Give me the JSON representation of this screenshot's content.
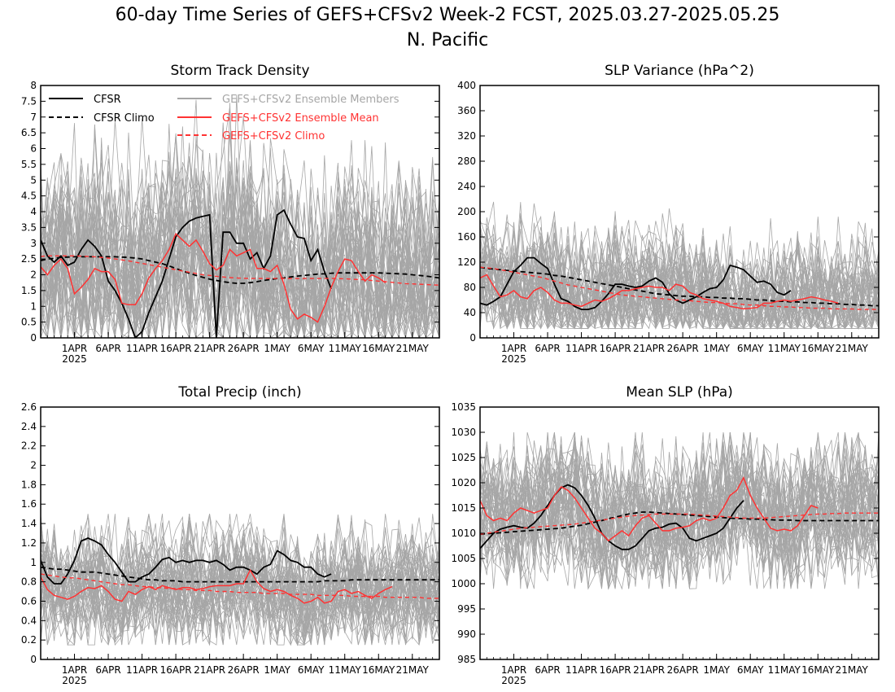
{
  "page": {
    "title_line1": "60-day Time Series of GEFS+CFSv2 Week-2 FCST, 2025.03.27-2025.05.25",
    "title_line2": "N. Pacific"
  },
  "legend": {
    "cfsr": "CFSR",
    "cfsr_climo": "CFSR Climo",
    "members": "GEFS+CFSv2 Ensemble Members",
    "mean": "GEFS+CFSv2 Ensemble Mean",
    "climo": "GEFS+CFSv2 Climo"
  },
  "colors": {
    "cfsr": "#000000",
    "members": "#a6a6a6",
    "mean": "#ff3333",
    "climo": "#ff3333"
  },
  "x_axis": {
    "start": "2025-03-27",
    "end": "2025-05-25",
    "tick_labels": [
      "1APR",
      "6APR",
      "11APR",
      "16APR",
      "21APR",
      "26APR",
      "1MAY",
      "6MAY",
      "11MAY",
      "16MAY",
      "21MAY"
    ],
    "year_label": "2025"
  },
  "chart_data": [
    {
      "type": "line",
      "title": "Storm Track Density",
      "ylim": [
        0,
        8
      ],
      "yticks": [
        "0",
        "0.5",
        "1",
        "1.5",
        "2",
        "2.5",
        "3",
        "3.5",
        "4",
        "4.5",
        "5",
        "5.5",
        "6",
        "6.5",
        "7",
        "7.5",
        "8"
      ],
      "members_range": [
        0,
        7.7
      ],
      "legend_position": "top-left",
      "series": [
        {
          "name": "CFSR",
          "values": [
            3.1,
            2.6,
            2.4,
            2.6,
            2.3,
            2.4,
            2.8,
            3.1,
            2.9,
            2.6,
            1.8,
            1.5,
            1.1,
            0.6,
            0.0,
            0.2,
            0.8,
            1.3,
            1.8,
            2.5,
            3.2,
            3.5,
            3.7,
            3.8,
            3.85,
            3.9,
            0.0,
            3.35,
            3.35,
            3.0,
            3.0,
            2.5,
            2.7,
            2.2,
            2.6,
            3.9,
            4.05,
            3.6,
            3.2,
            3.15,
            2.45,
            2.8,
            2.1,
            1.55
          ]
        },
        {
          "name": "CFSR Climo",
          "values": [
            2.45,
            2.5,
            2.52,
            2.55,
            2.56,
            2.57,
            2.57,
            2.57,
            2.57,
            2.57,
            2.57,
            2.57,
            2.56,
            2.55,
            2.53,
            2.5,
            2.45,
            2.4,
            2.35,
            2.28,
            2.2,
            2.12,
            2.05,
            1.98,
            1.92,
            1.86,
            1.82,
            1.78,
            1.75,
            1.73,
            1.73,
            1.75,
            1.78,
            1.82,
            1.85,
            1.88,
            1.9,
            1.93,
            1.96,
            1.98,
            2.0,
            2.02,
            2.03,
            2.05,
            2.06,
            2.06,
            2.06,
            2.06,
            2.06,
            2.06,
            2.06,
            2.05,
            2.04,
            2.03,
            2.02,
            2.0,
            1.98,
            1.96,
            1.93,
            1.9
          ]
        },
        {
          "name": "GEFS+CFSv2 Ensemble Mean",
          "values": [
            2.25,
            2.0,
            2.3,
            2.5,
            2.2,
            1.4,
            1.6,
            1.85,
            2.2,
            2.1,
            2.1,
            1.85,
            1.1,
            1.05,
            1.05,
            1.4,
            1.9,
            2.2,
            2.45,
            2.8,
            3.3,
            3.1,
            2.9,
            3.1,
            2.75,
            2.35,
            2.15,
            2.3,
            2.8,
            2.6,
            2.7,
            2.8,
            2.2,
            2.2,
            2.1,
            2.3,
            1.7,
            0.9,
            0.6,
            0.75,
            0.65,
            0.5,
            1.0,
            1.6,
            2.1,
            2.5,
            2.45,
            2.1,
            1.8,
            2.0,
            1.9,
            1.75
          ]
        },
        {
          "name": "GEFS+CFSv2 Climo",
          "values": [
            2.58,
            2.6,
            2.6,
            2.6,
            2.6,
            2.6,
            2.59,
            2.58,
            2.57,
            2.55,
            2.53,
            2.5,
            2.47,
            2.44,
            2.4,
            2.36,
            2.32,
            2.28,
            2.24,
            2.2,
            2.16,
            2.12,
            2.08,
            2.04,
            2.0,
            1.98,
            1.95,
            1.93,
            1.91,
            1.9,
            1.89,
            1.88,
            1.88,
            1.88,
            1.88,
            1.88,
            1.88,
            1.88,
            1.88,
            1.88,
            1.88,
            1.88,
            1.88,
            1.88,
            1.88,
            1.87,
            1.86,
            1.85,
            1.84,
            1.82,
            1.8,
            1.78,
            1.76,
            1.74,
            1.72,
            1.71,
            1.7,
            1.69,
            1.68,
            1.67
          ]
        }
      ]
    },
    {
      "type": "line",
      "title": "SLP Variance (hPa^2)",
      "ylim": [
        0,
        400
      ],
      "yticks": [
        "0",
        "40",
        "80",
        "120",
        "160",
        "200",
        "240",
        "280",
        "320",
        "360",
        "400"
      ],
      "members_range": [
        15,
        235
      ],
      "series": [
        {
          "name": "CFSR",
          "values": [
            55,
            52,
            58,
            65,
            85,
            105,
            115,
            127,
            127,
            118,
            110,
            85,
            62,
            58,
            50,
            45,
            45,
            48,
            58,
            70,
            85,
            85,
            82,
            80,
            82,
            90,
            95,
            88,
            70,
            60,
            55,
            60,
            65,
            72,
            78,
            80,
            92,
            115,
            112,
            108,
            98,
            88,
            90,
            85,
            72,
            68,
            75
          ]
        },
        {
          "name": "CFSR Climo",
          "values": [
            112,
            110,
            109,
            108,
            107,
            106,
            105,
            104,
            103,
            102,
            101,
            99,
            98,
            96,
            94,
            92,
            90,
            88,
            86,
            84,
            82,
            80,
            78,
            76,
            74,
            72,
            70,
            69,
            68,
            67,
            66,
            66,
            65,
            65,
            64,
            64,
            63,
            63,
            62,
            62,
            61,
            60,
            60,
            59,
            58,
            58,
            57,
            57,
            56,
            56,
            55,
            55,
            54,
            54,
            53,
            53,
            52,
            52,
            51,
            51
          ]
        },
        {
          "name": "GEFS+CFSv2 Ensemble Mean",
          "values": [
            95,
            100,
            82,
            65,
            68,
            75,
            65,
            62,
            75,
            80,
            72,
            60,
            55,
            55,
            52,
            50,
            55,
            60,
            58,
            62,
            68,
            75,
            75,
            78,
            80,
            82,
            80,
            80,
            75,
            85,
            82,
            72,
            68,
            62,
            60,
            58,
            55,
            50,
            48,
            46,
            47,
            48,
            55,
            55,
            58,
            60,
            58,
            60,
            62,
            65,
            63,
            60,
            58,
            55
          ]
        },
        {
          "name": "GEFS+CFSv2 Climo",
          "values": [
            112,
            111,
            110,
            108,
            106,
            104,
            102,
            100,
            98,
            96,
            93,
            90,
            87,
            84,
            82,
            80,
            78,
            76,
            74,
            72,
            70,
            68,
            67,
            66,
            65,
            64,
            63,
            62,
            61,
            60,
            60,
            59,
            58,
            57,
            56,
            56,
            55,
            54,
            54,
            53,
            52,
            52,
            51,
            50,
            50,
            49,
            49,
            48,
            48,
            47,
            47,
            47,
            46,
            46,
            46,
            46,
            45,
            45,
            45,
            45
          ]
        }
      ]
    },
    {
      "type": "line",
      "title": "Total Precip (inch)",
      "ylim": [
        0,
        2.6
      ],
      "yticks": [
        "0",
        "0.2",
        "0.4",
        "0.6",
        "0.8",
        "1",
        "1.2",
        "1.4",
        "1.6",
        "1.8",
        "2",
        "2.2",
        "2.4",
        "2.6"
      ],
      "members_range": [
        0.15,
        1.5
      ],
      "series": [
        {
          "name": "CFSR",
          "values": [
            1.02,
            0.85,
            0.78,
            0.78,
            0.88,
            1.02,
            1.22,
            1.25,
            1.22,
            1.18,
            1.08,
            1.0,
            0.9,
            0.8,
            0.8,
            0.85,
            0.88,
            0.95,
            1.03,
            1.05,
            1.0,
            1.02,
            1.0,
            1.02,
            1.02,
            1.0,
            1.02,
            0.98,
            0.92,
            0.95,
            0.95,
            0.92,
            0.88,
            0.95,
            0.98,
            1.12,
            1.08,
            1.02,
            1.0,
            0.95,
            0.95,
            0.88,
            0.85,
            0.88
          ]
        },
        {
          "name": "CFSR Climo",
          "values": [
            0.95,
            0.94,
            0.93,
            0.93,
            0.92,
            0.91,
            0.9,
            0.9,
            0.9,
            0.89,
            0.88,
            0.87,
            0.86,
            0.85,
            0.84,
            0.83,
            0.82,
            0.82,
            0.81,
            0.81,
            0.81,
            0.8,
            0.8,
            0.8,
            0.8,
            0.8,
            0.8,
            0.8,
            0.8,
            0.8,
            0.8,
            0.8,
            0.8,
            0.8,
            0.8,
            0.8,
            0.8,
            0.8,
            0.8,
            0.8,
            0.8,
            0.8,
            0.81,
            0.81,
            0.81,
            0.81,
            0.82,
            0.82,
            0.82,
            0.82,
            0.82,
            0.82,
            0.82,
            0.82,
            0.82,
            0.82,
            0.82,
            0.82,
            0.82,
            0.82
          ]
        },
        {
          "name": "GEFS+CFSv2 Ensemble Mean",
          "values": [
            0.85,
            0.72,
            0.66,
            0.64,
            0.62,
            0.65,
            0.7,
            0.74,
            0.73,
            0.76,
            0.7,
            0.62,
            0.6,
            0.7,
            0.67,
            0.72,
            0.75,
            0.72,
            0.76,
            0.74,
            0.72,
            0.74,
            0.74,
            0.72,
            0.73,
            0.75,
            0.76,
            0.76,
            0.76,
            0.78,
            0.78,
            0.92,
            0.8,
            0.73,
            0.7,
            0.72,
            0.7,
            0.66,
            0.63,
            0.58,
            0.6,
            0.64,
            0.58,
            0.6,
            0.7,
            0.72,
            0.68,
            0.7,
            0.66,
            0.63,
            0.68,
            0.72,
            0.75
          ]
        },
        {
          "name": "GEFS+CFSv2 Climo",
          "values": [
            0.88,
            0.87,
            0.86,
            0.85,
            0.84,
            0.84,
            0.83,
            0.82,
            0.81,
            0.8,
            0.79,
            0.78,
            0.77,
            0.77,
            0.76,
            0.75,
            0.75,
            0.74,
            0.74,
            0.73,
            0.73,
            0.72,
            0.72,
            0.71,
            0.71,
            0.71,
            0.7,
            0.7,
            0.7,
            0.69,
            0.69,
            0.69,
            0.69,
            0.68,
            0.68,
            0.68,
            0.68,
            0.67,
            0.67,
            0.67,
            0.67,
            0.66,
            0.66,
            0.66,
            0.66,
            0.66,
            0.65,
            0.65,
            0.65,
            0.65,
            0.65,
            0.64,
            0.64,
            0.64,
            0.64,
            0.64,
            0.64,
            0.63,
            0.63,
            0.63
          ]
        }
      ]
    },
    {
      "type": "line",
      "title": "Mean SLP (hPa)",
      "ylim": [
        985,
        1035
      ],
      "yticks": [
        "985",
        "990",
        "995",
        "1000",
        "1005",
        "1010",
        "1015",
        "1020",
        "1025",
        "1030",
        "1035"
      ],
      "members_range": [
        999,
        1030
      ],
      "series": [
        {
          "name": "CFSR",
          "values": [
            1007,
            1008.5,
            1010,
            1010.8,
            1011.2,
            1011.5,
            1011.2,
            1011,
            1012,
            1013.5,
            1015.5,
            1017.5,
            1019,
            1019.6,
            1019,
            1017.5,
            1015.5,
            1013,
            1010,
            1008.5,
            1007.5,
            1006.8,
            1006.8,
            1007.5,
            1009,
            1010.5,
            1011,
            1011.2,
            1011.8,
            1012,
            1011,
            1009,
            1008.5,
            1009,
            1009.5,
            1010,
            1011,
            1013,
            1015,
            1016.5
          ]
        },
        {
          "name": "CFSR Climo",
          "values": [
            1009.8,
            1009.9,
            1010,
            1010.1,
            1010.2,
            1010.3,
            1010.4,
            1010.5,
            1010.6,
            1010.7,
            1010.8,
            1010.9,
            1011,
            1011.2,
            1011.4,
            1011.6,
            1011.9,
            1012.2,
            1012.5,
            1012.9,
            1013.2,
            1013.5,
            1013.8,
            1014,
            1014.2,
            1014.2,
            1014.1,
            1014,
            1013.9,
            1013.8,
            1013.7,
            1013.6,
            1013.5,
            1013.4,
            1013.3,
            1013.2,
            1013.1,
            1013,
            1012.9,
            1012.9,
            1012.8,
            1012.8,
            1012.7,
            1012.7,
            1012.6,
            1012.6,
            1012.6,
            1012.5,
            1012.5,
            1012.5,
            1012.5,
            1012.5,
            1012.5,
            1012.5,
            1012.5,
            1012.5,
            1012.5,
            1012.5,
            1012.5,
            1012.5
          ]
        },
        {
          "name": "GEFS+CFSv2 Ensemble Mean",
          "values": [
            1016.5,
            1013.5,
            1012.5,
            1013,
            1012.5,
            1014,
            1015,
            1014.5,
            1014,
            1014.5,
            1015,
            1017.5,
            1019.2,
            1018.5,
            1017,
            1015,
            1013,
            1011,
            1010,
            1008.5,
            1009.5,
            1010.5,
            1009.5,
            1011.5,
            1013,
            1013.5,
            1012,
            1010.5,
            1010.5,
            1011,
            1011.2,
            1011.5,
            1012.5,
            1013,
            1012.5,
            1013,
            1015,
            1017.5,
            1018.5,
            1021,
            1017.5,
            1015,
            1013,
            1011,
            1010.5,
            1010.8,
            1010.5,
            1011.5,
            1013.5,
            1015.5,
            1015
          ]
        },
        {
          "name": "GEFS+CFSv2 Climo",
          "values": [
            1009.8,
            1010,
            1010.2,
            1010.4,
            1010.6,
            1010.8,
            1011,
            1011.1,
            1011.2,
            1011.3,
            1011.4,
            1011.5,
            1011.6,
            1011.7,
            1011.8,
            1012,
            1012.2,
            1012.4,
            1012.6,
            1012.8,
            1013,
            1013.2,
            1013.4,
            1013.5,
            1013.6,
            1013.7,
            1013.8,
            1013.8,
            1013.8,
            1013.8,
            1013.8,
            1013.8,
            1013.7,
            1013.6,
            1013.5,
            1013.4,
            1013.3,
            1013.2,
            1013.1,
            1013,
            1013,
            1013,
            1013,
            1013.1,
            1013.2,
            1013.3,
            1013.4,
            1013.5,
            1013.6,
            1013.7,
            1013.8,
            1013.8,
            1013.9,
            1013.9,
            1014,
            1014,
            1014,
            1014,
            1014,
            1014
          ]
        }
      ]
    }
  ]
}
